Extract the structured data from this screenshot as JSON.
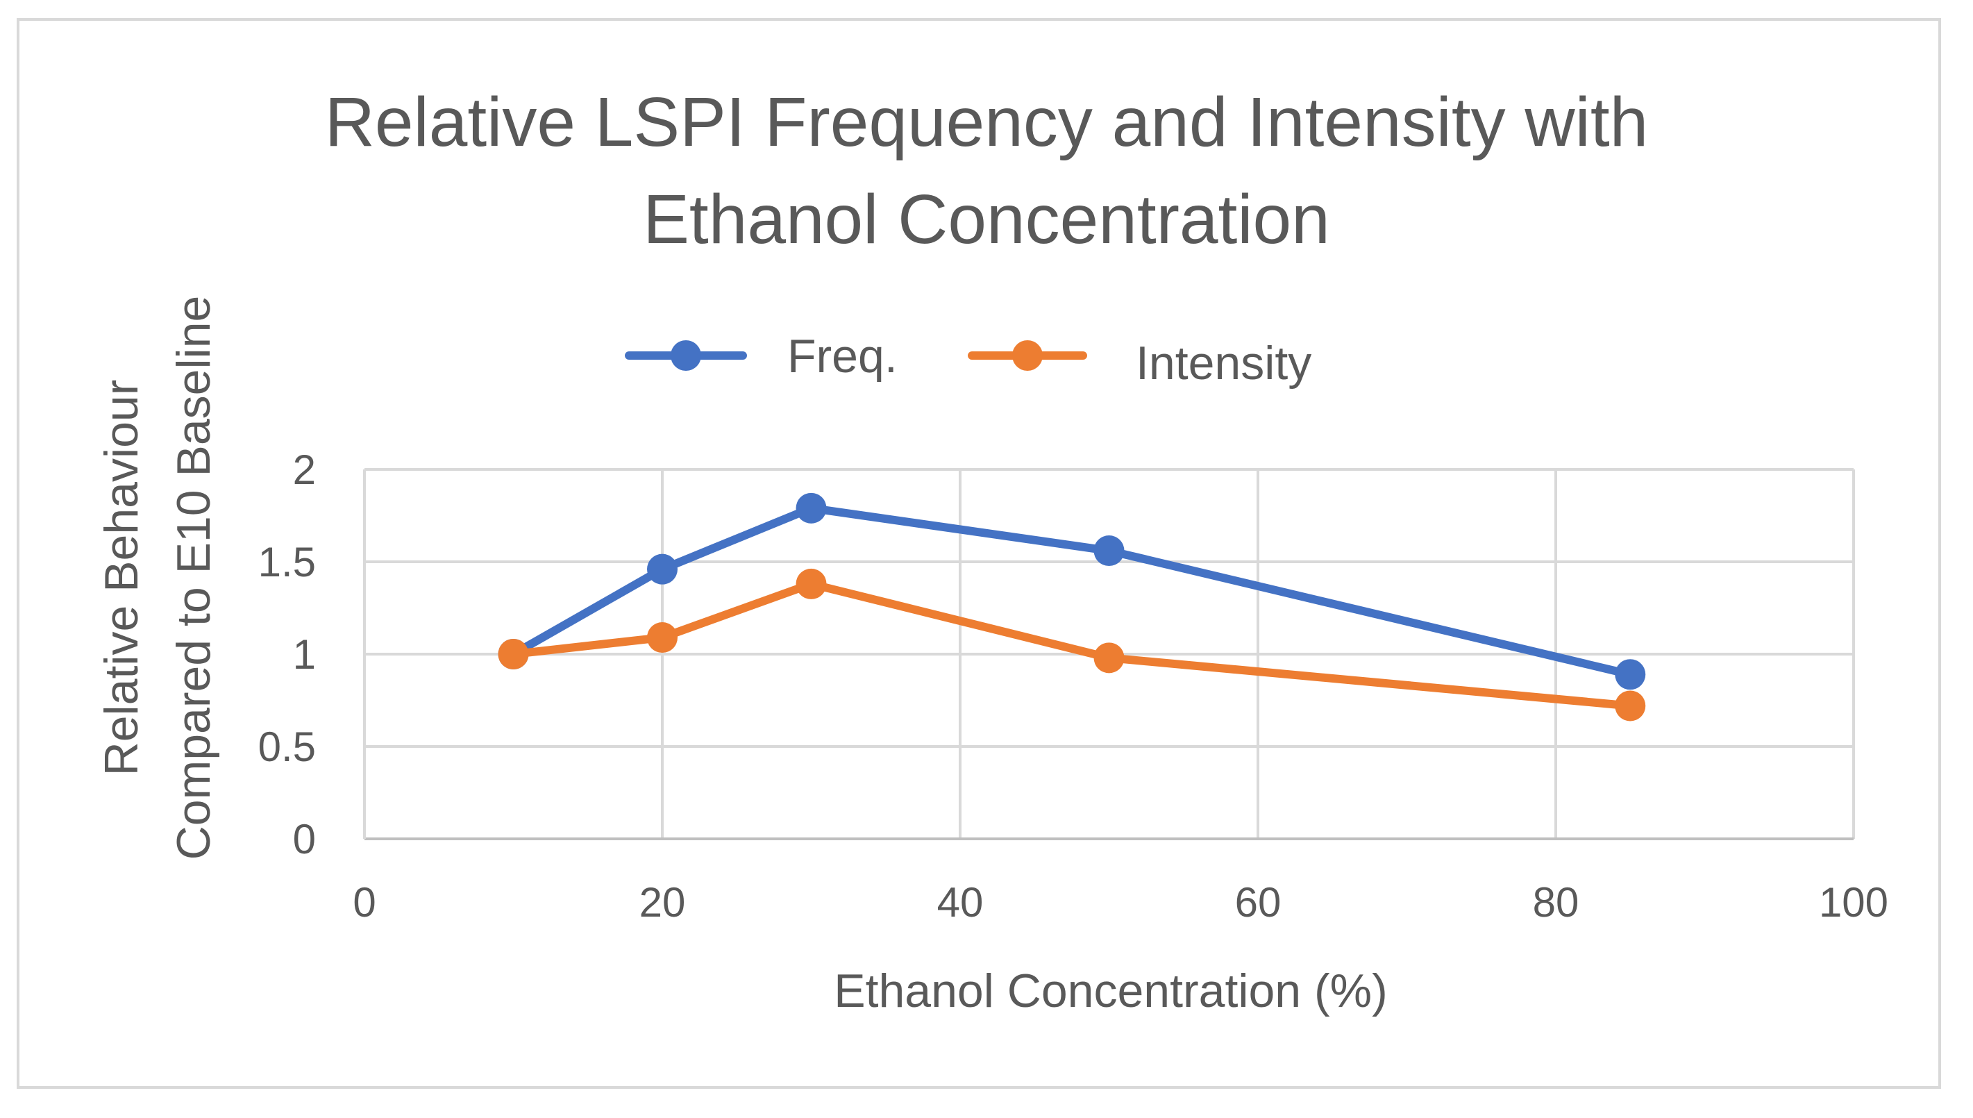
{
  "chart_data": {
    "type": "line",
    "title_lines": [
      "Relative LSPI Frequency and Intensity with",
      "Ethanol Concentration"
    ],
    "xlabel": "Ethanol Concentration (%)",
    "ylabel_lines": [
      "Relative Behaviour",
      "Compared to E10 Baseline"
    ],
    "xlim": [
      0,
      100
    ],
    "ylim": [
      0,
      2
    ],
    "x_ticks": [
      0,
      20,
      40,
      60,
      80,
      100
    ],
    "y_ticks": [
      0,
      0.5,
      1,
      1.5,
      2
    ],
    "grid": true,
    "legend_position": "top-center",
    "series": [
      {
        "name": "Freq.",
        "color": "#4472c4",
        "x": [
          10,
          20,
          30,
          50,
          85
        ],
        "y": [
          1.0,
          1.46,
          1.79,
          1.56,
          0.89
        ]
      },
      {
        "name": "Intensity",
        "color": "#ed7d31",
        "x": [
          10,
          20,
          30,
          50,
          85
        ],
        "y": [
          1.0,
          1.09,
          1.38,
          0.98,
          0.72
        ]
      }
    ]
  }
}
